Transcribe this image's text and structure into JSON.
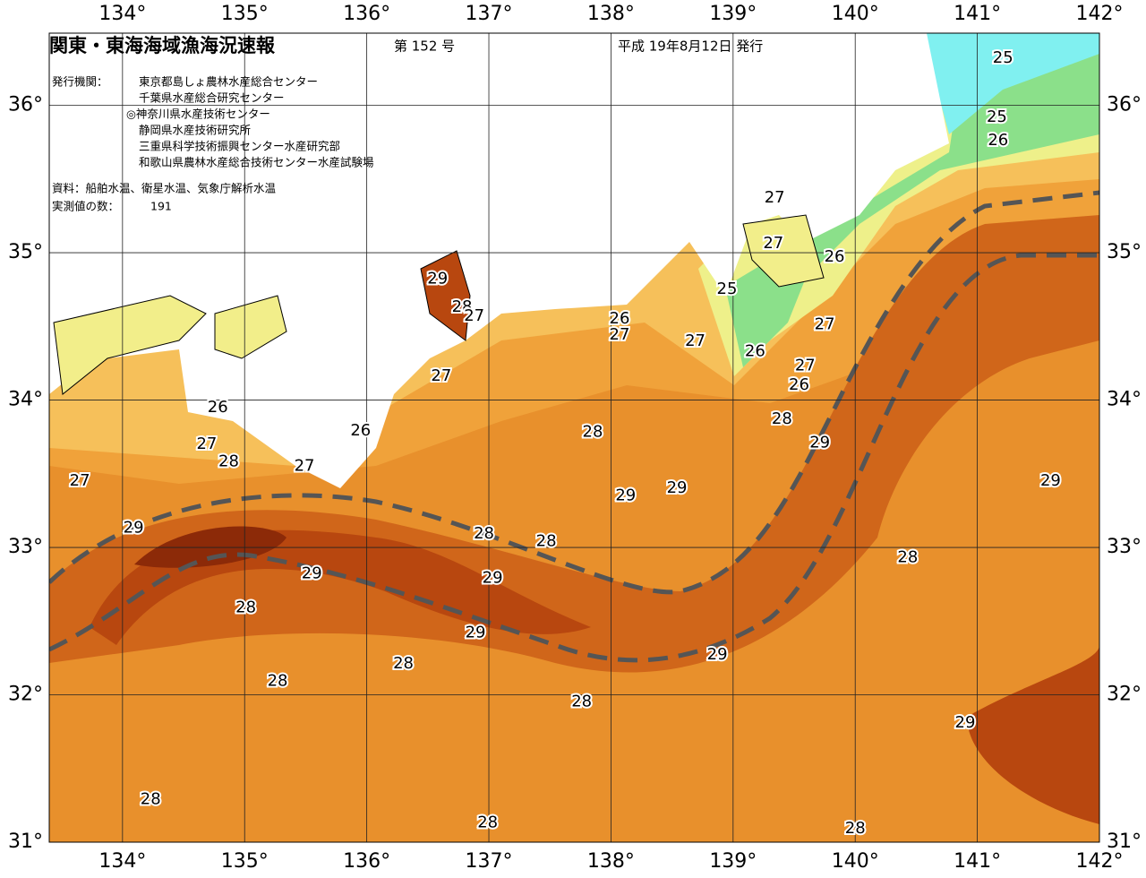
{
  "header": {
    "title": "関東・東海海域漁海況速報",
    "issue": "第 152 号",
    "date": "平成 19年8月12日 発行"
  },
  "info": {
    "agencies_label": "発行機関：",
    "agencies": [
      "東京都島しょ農林水産総合センター",
      "千葉県水産総合研究センター",
      "◎神奈川県水産技術センター",
      "静岡県水産技術研究所",
      "三重県科学技術振興センター水産研究部",
      "和歌山県農林水産総合技術センター水産試験場"
    ],
    "sources": "資料：船舶水温、衛星水温、気象庁解析水温",
    "count_label": "実測値の数：",
    "count": 191
  },
  "map": {
    "lonlim": [
      133.4,
      142
    ],
    "latlim": [
      31,
      36.49
    ],
    "lon_ticks": [
      {
        "value": 134,
        "label": "134°"
      },
      {
        "value": 135,
        "label": "135°"
      },
      {
        "value": 136,
        "label": "136°"
      },
      {
        "value": 137,
        "label": "137°"
      },
      {
        "value": 138,
        "label": "138°"
      },
      {
        "value": 139,
        "label": "139°"
      },
      {
        "value": 140,
        "label": "140°"
      },
      {
        "value": 141,
        "label": "141°"
      },
      {
        "value": 142,
        "label": "142°"
      }
    ],
    "lat_ticks": [
      {
        "value": 31,
        "label": "31°"
      },
      {
        "value": 32,
        "label": "32°"
      },
      {
        "value": 33,
        "label": "33°"
      },
      {
        "value": 34,
        "label": "34°"
      },
      {
        "value": 35,
        "label": "35°"
      },
      {
        "value": 36,
        "label": "36°"
      }
    ],
    "contour_labels": [
      {
        "value": 25,
        "lon": 141.21,
        "lat": 36.32
      },
      {
        "value": 25,
        "lon": 141.16,
        "lat": 35.92
      },
      {
        "value": 26,
        "lon": 141.17,
        "lat": 35.76
      },
      {
        "value": 27,
        "lon": 139.34,
        "lat": 35.37
      },
      {
        "value": 27,
        "lon": 139.33,
        "lat": 35.06
      },
      {
        "value": 26,
        "lon": 139.83,
        "lat": 34.97
      },
      {
        "value": 25,
        "lon": 138.95,
        "lat": 34.75
      },
      {
        "value": 29,
        "lon": 136.58,
        "lat": 34.82
      },
      {
        "value": 28,
        "lon": 136.78,
        "lat": 34.63
      },
      {
        "value": 27,
        "lon": 136.88,
        "lat": 34.57
      },
      {
        "value": 26,
        "lon": 138.07,
        "lat": 34.55
      },
      {
        "value": 27,
        "lon": 138.07,
        "lat": 34.44
      },
      {
        "value": 27,
        "lon": 138.69,
        "lat": 34.4
      },
      {
        "value": 26,
        "lon": 139.18,
        "lat": 34.33
      },
      {
        "value": 27,
        "lon": 139.75,
        "lat": 34.51
      },
      {
        "value": 27,
        "lon": 139.59,
        "lat": 34.23
      },
      {
        "value": 26,
        "lon": 139.54,
        "lat": 34.1
      },
      {
        "value": 27,
        "lon": 136.61,
        "lat": 34.16
      },
      {
        "value": 26,
        "lon": 134.78,
        "lat": 33.95
      },
      {
        "value": 28,
        "lon": 139.4,
        "lat": 33.87
      },
      {
        "value": 28,
        "lon": 137.85,
        "lat": 33.78
      },
      {
        "value": 29,
        "lon": 139.71,
        "lat": 33.71
      },
      {
        "value": 26,
        "lon": 135.95,
        "lat": 33.79
      },
      {
        "value": 27,
        "lon": 134.69,
        "lat": 33.7
      },
      {
        "value": 28,
        "lon": 134.87,
        "lat": 33.58
      },
      {
        "value": 27,
        "lon": 135.49,
        "lat": 33.55
      },
      {
        "value": 27,
        "lon": 133.65,
        "lat": 33.45
      },
      {
        "value": 29,
        "lon": 138.12,
        "lat": 33.35
      },
      {
        "value": 29,
        "lon": 138.54,
        "lat": 33.4
      },
      {
        "value": 29,
        "lon": 141.6,
        "lat": 33.45
      },
      {
        "value": 29,
        "lon": 134.09,
        "lat": 33.13
      },
      {
        "value": 28,
        "lon": 136.96,
        "lat": 33.09
      },
      {
        "value": 28,
        "lon": 137.47,
        "lat": 33.04
      },
      {
        "value": 29,
        "lon": 135.55,
        "lat": 32.82
      },
      {
        "value": 29,
        "lon": 137.03,
        "lat": 32.79
      },
      {
        "value": 28,
        "lon": 140.43,
        "lat": 32.93
      },
      {
        "value": 28,
        "lon": 135.01,
        "lat": 32.59
      },
      {
        "value": 29,
        "lon": 136.89,
        "lat": 32.42
      },
      {
        "value": 29,
        "lon": 138.87,
        "lat": 32.27
      },
      {
        "value": 28,
        "lon": 136.3,
        "lat": 32.21
      },
      {
        "value": 28,
        "lon": 135.27,
        "lat": 32.09
      },
      {
        "value": 28,
        "lon": 137.76,
        "lat": 31.95
      },
      {
        "value": 29,
        "lon": 140.9,
        "lat": 31.81
      },
      {
        "value": 28,
        "lon": 134.23,
        "lat": 31.29
      },
      {
        "value": 28,
        "lon": 136.99,
        "lat": 31.13
      },
      {
        "value": 28,
        "lon": 140.0,
        "lat": 31.09
      }
    ]
  }
}
